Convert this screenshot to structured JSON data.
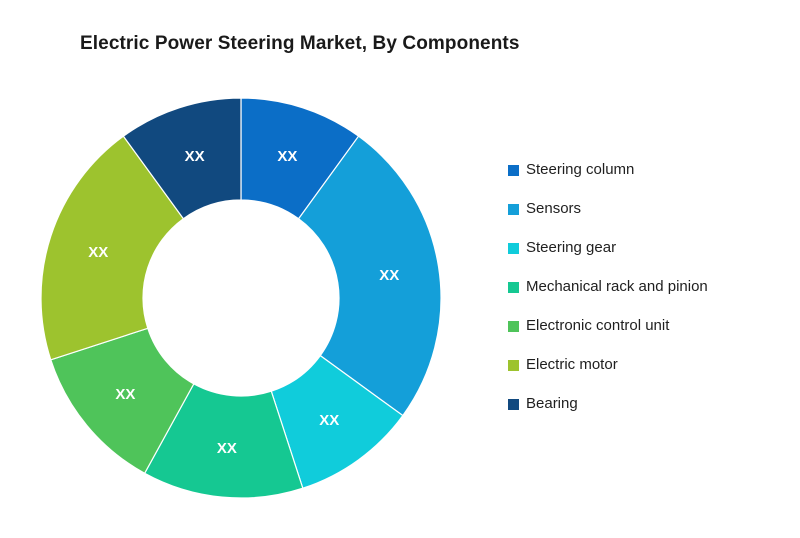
{
  "title": "Electric Power Steering Market, By Components",
  "chart_data": {
    "type": "pie",
    "subtype": "donut",
    "title": "Electric Power Steering Market, By Components",
    "start_angle_deg": 0,
    "clockwise": true,
    "donut_hole_ratio": 0.49,
    "legend_position": "right",
    "data_labels_shown": "XX",
    "series": [
      {
        "name": "Steering column",
        "label": "XX",
        "value": 10,
        "color": "#0b6ec7"
      },
      {
        "name": "Sensors",
        "label": "XX",
        "value": 25,
        "color": "#149fd9"
      },
      {
        "name": "Steering gear",
        "label": "XX",
        "value": 10,
        "color": "#10ccdb"
      },
      {
        "name": "Mechanical rack and pinion",
        "label": "XX",
        "value": 13,
        "color": "#15c892"
      },
      {
        "name": "Electronic control unit",
        "label": "XX",
        "value": 12,
        "color": "#4fc45a"
      },
      {
        "name": "Electric motor",
        "label": "XX",
        "value": 20,
        "color": "#9dc32e"
      },
      {
        "name": "Bearing",
        "label": "XX",
        "value": 10,
        "color": "#11497f"
      }
    ]
  },
  "colors": {
    "background": "#ffffff",
    "title_text": "#1a1a1a",
    "legend_text": "#1f1f1f",
    "slice_label_text": "#ffffff",
    "slice_separator": "#ffffff"
  }
}
